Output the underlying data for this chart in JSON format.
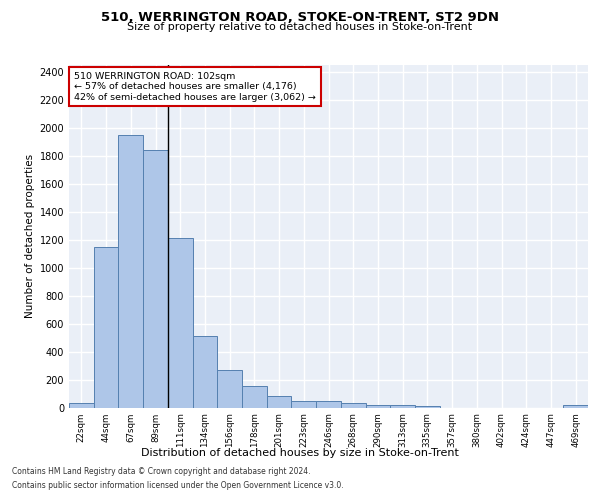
{
  "title1": "510, WERRINGTON ROAD, STOKE-ON-TRENT, ST2 9DN",
  "title2": "Size of property relative to detached houses in Stoke-on-Trent",
  "xlabel": "Distribution of detached houses by size in Stoke-on-Trent",
  "ylabel": "Number of detached properties",
  "categories": [
    "22sqm",
    "44sqm",
    "67sqm",
    "89sqm",
    "111sqm",
    "134sqm",
    "156sqm",
    "178sqm",
    "201sqm",
    "223sqm",
    "246sqm",
    "268sqm",
    "290sqm",
    "313sqm",
    "335sqm",
    "357sqm",
    "380sqm",
    "402sqm",
    "424sqm",
    "447sqm",
    "469sqm"
  ],
  "values": [
    30,
    1150,
    1950,
    1840,
    1210,
    515,
    265,
    155,
    80,
    50,
    45,
    35,
    18,
    20,
    12,
    0,
    0,
    0,
    0,
    0,
    18
  ],
  "bar_color": "#aec6e8",
  "bar_edge_color": "#5580b0",
  "annotation_title": "510 WERRINGTON ROAD: 102sqm",
  "annotation_line1": "← 57% of detached houses are smaller (4,176)",
  "annotation_line2": "42% of semi-detached houses are larger (3,062) →",
  "annotation_box_color": "#cc0000",
  "footer1": "Contains HM Land Registry data © Crown copyright and database right 2024.",
  "footer2": "Contains public sector information licensed under the Open Government Licence v3.0.",
  "ylim": [
    0,
    2450
  ],
  "yticks": [
    0,
    200,
    400,
    600,
    800,
    1000,
    1200,
    1400,
    1600,
    1800,
    2000,
    2200,
    2400
  ],
  "bg_color": "#eaeff7",
  "grid_color": "#ffffff",
  "prop_sqm": 102,
  "bin_edges": [
    22,
    44,
    67,
    89,
    111,
    134,
    156,
    178,
    201,
    223,
    246,
    268,
    290,
    313,
    335,
    357,
    380,
    402,
    424,
    447,
    469,
    491
  ]
}
